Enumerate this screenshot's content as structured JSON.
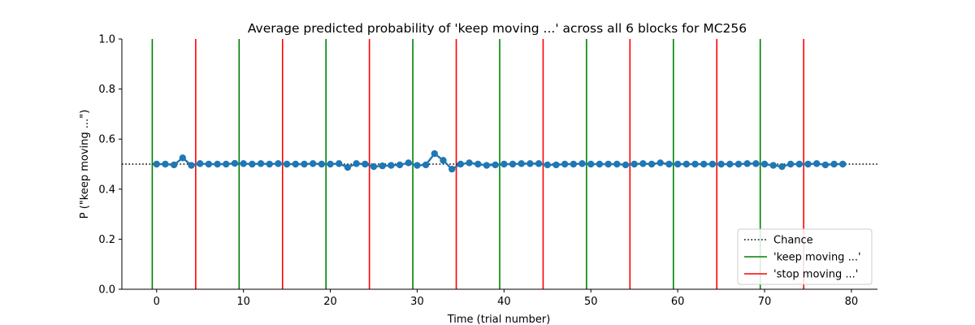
{
  "chart_data": {
    "type": "line",
    "title": "Average predicted probability of 'keep moving ...' across all 6 blocks for MC256",
    "xlabel": "Time (trial number)",
    "ylabel": "P (\"keep moving ...\")",
    "xlim": [
      -4,
      83
    ],
    "ylim": [
      0.0,
      1.0
    ],
    "xticks": [
      0,
      10,
      20,
      30,
      40,
      50,
      60,
      70,
      80
    ],
    "yticks": [
      0.0,
      0.2,
      0.4,
      0.6,
      0.8,
      1.0
    ],
    "xtick_labels": [
      "0",
      "10",
      "20",
      "30",
      "40",
      "50",
      "60",
      "70",
      "80"
    ],
    "ytick_labels": [
      "0.0",
      "0.2",
      "0.4",
      "0.6",
      "0.8",
      "1.0"
    ],
    "grid": false,
    "legend_position": "bottom-right",
    "chance": {
      "name": "Chance",
      "value": 0.5,
      "color": "#000000",
      "style": "dotted"
    },
    "keep_lines": {
      "name": "'keep moving ...'",
      "color": "#008000",
      "x": [
        -0.5,
        9.5,
        19.5,
        29.5,
        39.5,
        49.5,
        59.5,
        69.5
      ]
    },
    "stop_lines": {
      "name": "'stop moving ...'",
      "color": "#ff0000",
      "x": [
        4.5,
        14.5,
        24.5,
        34.5,
        44.5,
        54.5,
        64.5,
        74.5
      ]
    },
    "series": [
      {
        "color": "#1f77b4",
        "x": [
          0,
          1,
          2,
          3,
          4,
          5,
          6,
          7,
          8,
          9,
          10,
          11,
          12,
          13,
          14,
          15,
          16,
          17,
          18,
          19,
          20,
          21,
          22,
          23,
          24,
          25,
          26,
          27,
          28,
          29,
          30,
          31,
          32,
          33,
          34,
          35,
          36,
          37,
          38,
          39,
          40,
          41,
          42,
          43,
          44,
          45,
          46,
          47,
          48,
          49,
          50,
          51,
          52,
          53,
          54,
          55,
          56,
          57,
          58,
          59,
          60,
          61,
          62,
          63,
          64,
          65,
          66,
          67,
          68,
          69,
          70,
          71,
          72,
          73,
          74,
          75,
          76,
          77,
          78,
          79
        ],
        "values": [
          0.5,
          0.5,
          0.497,
          0.525,
          0.495,
          0.502,
          0.5,
          0.5,
          0.5,
          0.503,
          0.502,
          0.5,
          0.502,
          0.5,
          0.502,
          0.5,
          0.5,
          0.5,
          0.502,
          0.5,
          0.5,
          0.502,
          0.487,
          0.502,
          0.5,
          0.49,
          0.493,
          0.495,
          0.497,
          0.505,
          0.495,
          0.497,
          0.542,
          0.515,
          0.48,
          0.5,
          0.505,
          0.5,
          0.495,
          0.497,
          0.5,
          0.5,
          0.502,
          0.502,
          0.502,
          0.497,
          0.497,
          0.5,
          0.5,
          0.502,
          0.5,
          0.5,
          0.5,
          0.5,
          0.497,
          0.5,
          0.502,
          0.5,
          0.505,
          0.5,
          0.5,
          0.5,
          0.5,
          0.5,
          0.5,
          0.5,
          0.5,
          0.5,
          0.502,
          0.502,
          0.5,
          0.495,
          0.49,
          0.5,
          0.5,
          0.5,
          0.502,
          0.497,
          0.5,
          0.5
        ]
      }
    ]
  }
}
